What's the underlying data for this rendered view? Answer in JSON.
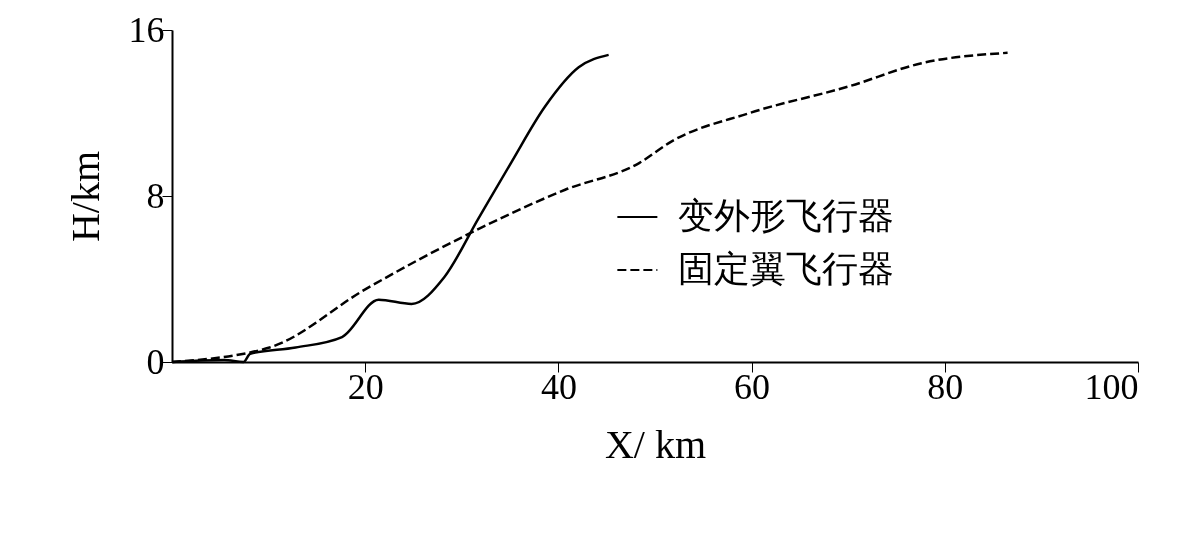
{
  "chart_data": {
    "type": "line",
    "xlabel": "X/ km",
    "ylabel": "H/km",
    "xlim": [
      0,
      100
    ],
    "xticks": [
      20,
      40,
      60,
      80,
      100
    ],
    "ylim": [
      0,
      16
    ],
    "yticks": [
      0,
      8,
      16
    ],
    "grid": false,
    "legend": "right",
    "marker": "none",
    "series": [
      {
        "name": "变外形飞行器",
        "color": "#000000",
        "line_style": "solid",
        "x": [
          0,
          5.4,
          7.4,
          8.1,
          12.8,
          17.6,
          21.4,
          24.8,
          28.2,
          31.7,
          35.1,
          38.6,
          42.1,
          45.2
        ],
        "values": [
          0,
          0.1,
          0,
          0.4,
          0.7,
          1.2,
          3.0,
          2.8,
          4.1,
          6.9,
          9.6,
          12.3,
          14.2,
          14.8
        ]
      },
      {
        "name": "固定翼飞行器",
        "color": "#000000",
        "line_style": "dashed",
        "x": [
          0,
          10.1,
          20,
          30.4,
          40.7,
          48.4,
          51.6,
          59.8,
          70.2,
          77.6,
          86.5
        ],
        "values": [
          0,
          0.7,
          3.5,
          6.1,
          8.3,
          9.6,
          10.6,
          12.0,
          13.3,
          14.4,
          14.9
        ]
      }
    ]
  }
}
